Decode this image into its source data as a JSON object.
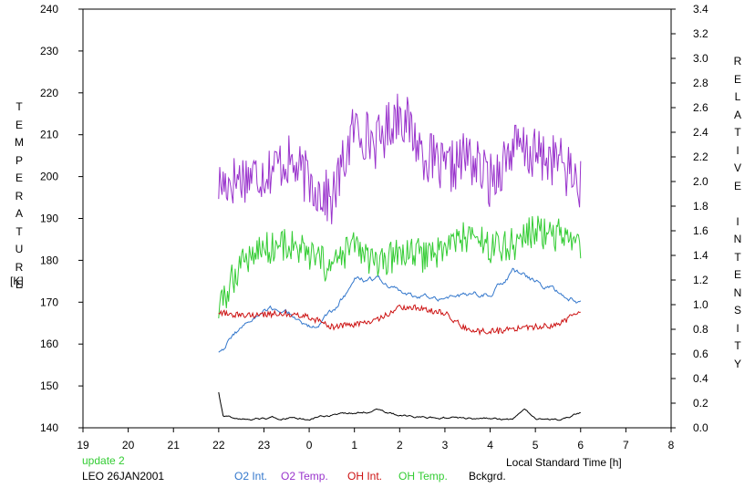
{
  "chart_data": {
    "type": "line",
    "title": "",
    "xlabel": "Local Standard Time [h]",
    "ylabel_left": "TEMPERATURE",
    "ylabel_left_unit": "[K]",
    "ylabel_right": "RELATIVE INTENSITY",
    "xlim": [
      19,
      8
    ],
    "x_ticks": [
      "19",
      "20",
      "21",
      "22",
      "23",
      "0",
      "1",
      "2",
      "3",
      "4",
      "5",
      "6",
      "7",
      "8"
    ],
    "ylim_left": [
      140,
      240
    ],
    "y_ticks_left": [
      "140",
      "150",
      "160",
      "170",
      "180",
      "190",
      "200",
      "210",
      "220",
      "230",
      "240"
    ],
    "ylim_right": [
      0.0,
      3.4
    ],
    "y_ticks_right": [
      "0.0",
      "0.2",
      "0.4",
      "0.6",
      "0.8",
      "1.0",
      "1.2",
      "1.4",
      "1.6",
      "1.8",
      "2.0",
      "2.2",
      "2.4",
      "2.6",
      "2.8",
      "3.0",
      "3.2",
      "3.4"
    ],
    "grid": false,
    "x_unit_note": "hours of local standard time, continuous (22 = 22:00, 24 = 0:00, 30 = 6:00)",
    "series": [
      {
        "name": "O2 Temp.",
        "axis": "left",
        "color": "#9933cc",
        "x": [
          22.0,
          22.5,
          23.0,
          23.5,
          24.0,
          24.5,
          25.0,
          25.5,
          26.0,
          26.5,
          27.0,
          27.5,
          28.0,
          28.5,
          29.0,
          29.5,
          30.0
        ],
        "y": [
          198,
          200,
          201,
          204,
          199,
          194,
          212,
          208,
          216,
          206,
          201,
          205,
          199,
          207,
          205,
          204,
          198
        ]
      },
      {
        "name": "OH Temp.",
        "axis": "left",
        "color": "#33cc33",
        "x": [
          22.0,
          22.5,
          23.0,
          23.5,
          24.0,
          24.5,
          25.0,
          25.5,
          26.0,
          26.5,
          27.0,
          27.5,
          28.0,
          28.5,
          29.0,
          29.5,
          30.0
        ],
        "y": [
          168,
          180,
          183,
          184,
          181,
          178,
          184,
          178,
          182,
          181,
          183,
          186,
          183,
          184,
          187,
          186,
          182
        ]
      },
      {
        "name": "O2 Int.",
        "axis": "right",
        "color": "#3377cc",
        "x": [
          22.0,
          22.5,
          23.0,
          23.5,
          24.0,
          24.5,
          25.0,
          25.5,
          26.0,
          26.5,
          27.0,
          27.5,
          28.0,
          28.5,
          29.0,
          29.5,
          30.0
        ],
        "y": [
          0.62,
          0.82,
          0.94,
          0.95,
          0.82,
          0.92,
          1.2,
          1.2,
          1.1,
          1.05,
          1.08,
          1.06,
          1.1,
          1.26,
          1.18,
          1.1,
          1.04
        ]
      },
      {
        "name": "OH Int.",
        "axis": "right",
        "color": "#cc1111",
        "x": [
          22.0,
          22.5,
          23.0,
          23.5,
          24.0,
          24.5,
          25.0,
          25.5,
          26.0,
          26.5,
          27.0,
          27.5,
          28.0,
          28.5,
          29.0,
          29.5,
          30.0
        ],
        "y": [
          0.94,
          0.91,
          0.92,
          0.93,
          0.9,
          0.82,
          0.84,
          0.87,
          0.98,
          0.97,
          0.93,
          0.79,
          0.78,
          0.8,
          0.82,
          0.83,
          0.96
        ]
      },
      {
        "name": "Bckgrd.",
        "axis": "right",
        "color": "#000000",
        "x": [
          22.0,
          22.1,
          22.5,
          23.0,
          23.5,
          24.0,
          24.5,
          25.0,
          25.5,
          26.0,
          26.5,
          27.0,
          27.5,
          28.0,
          28.5,
          28.75,
          29.0,
          29.5,
          30.0
        ],
        "y": [
          0.29,
          0.1,
          0.07,
          0.07,
          0.08,
          0.07,
          0.1,
          0.12,
          0.14,
          0.1,
          0.08,
          0.08,
          0.07,
          0.07,
          0.07,
          0.15,
          0.07,
          0.07,
          0.12
        ]
      }
    ]
  },
  "footer": {
    "update_note": "update 2",
    "station_date": "LEO 26JAN2001",
    "legend": [
      {
        "label": "O2 Int.",
        "color": "#3377cc"
      },
      {
        "label": "O2 Temp.",
        "color": "#9933cc"
      },
      {
        "label": "OH Int.",
        "color": "#cc1111"
      },
      {
        "label": "OH Temp.",
        "color": "#33cc33"
      },
      {
        "label": "Bckgrd.",
        "color": "#000000"
      }
    ],
    "update_color": "#33cc33"
  }
}
